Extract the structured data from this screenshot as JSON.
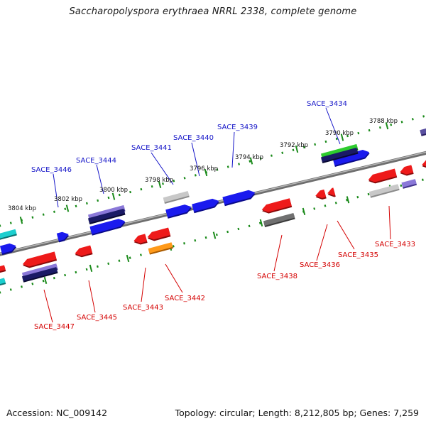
{
  "title": "Saccharopolyspora erythraea NRRL 2338, complete genome",
  "footer": {
    "accession": "Accession: NC_009142",
    "summary": "Topology: circular; Length: 8,212,805 bp; Genes: 7,259"
  },
  "colors": {
    "forward_label": "#1515c8",
    "reverse_label": "#d40000",
    "ruler_tick": "#1a8a1a",
    "backbone": "#888888"
  },
  "ruler_labels": [
    "3788 kbp",
    "3790 kbp",
    "3792 kbp",
    "3794 kbp",
    "3796 kbp",
    "3798 kbp",
    "3800 kbp",
    "3802 kbp",
    "3804 kbp"
  ],
  "forward_genes": [
    "SACE_3434",
    "SACE_3439",
    "SACE_3440",
    "SACE_3441",
    "SACE_3444",
    "SACE_3446"
  ],
  "reverse_genes": [
    "SACE_3433",
    "SACE_3435",
    "SACE_3436",
    "SACE_3438",
    "SACE_3442",
    "SACE_3443",
    "SACE_3445",
    "SACE_3447"
  ]
}
